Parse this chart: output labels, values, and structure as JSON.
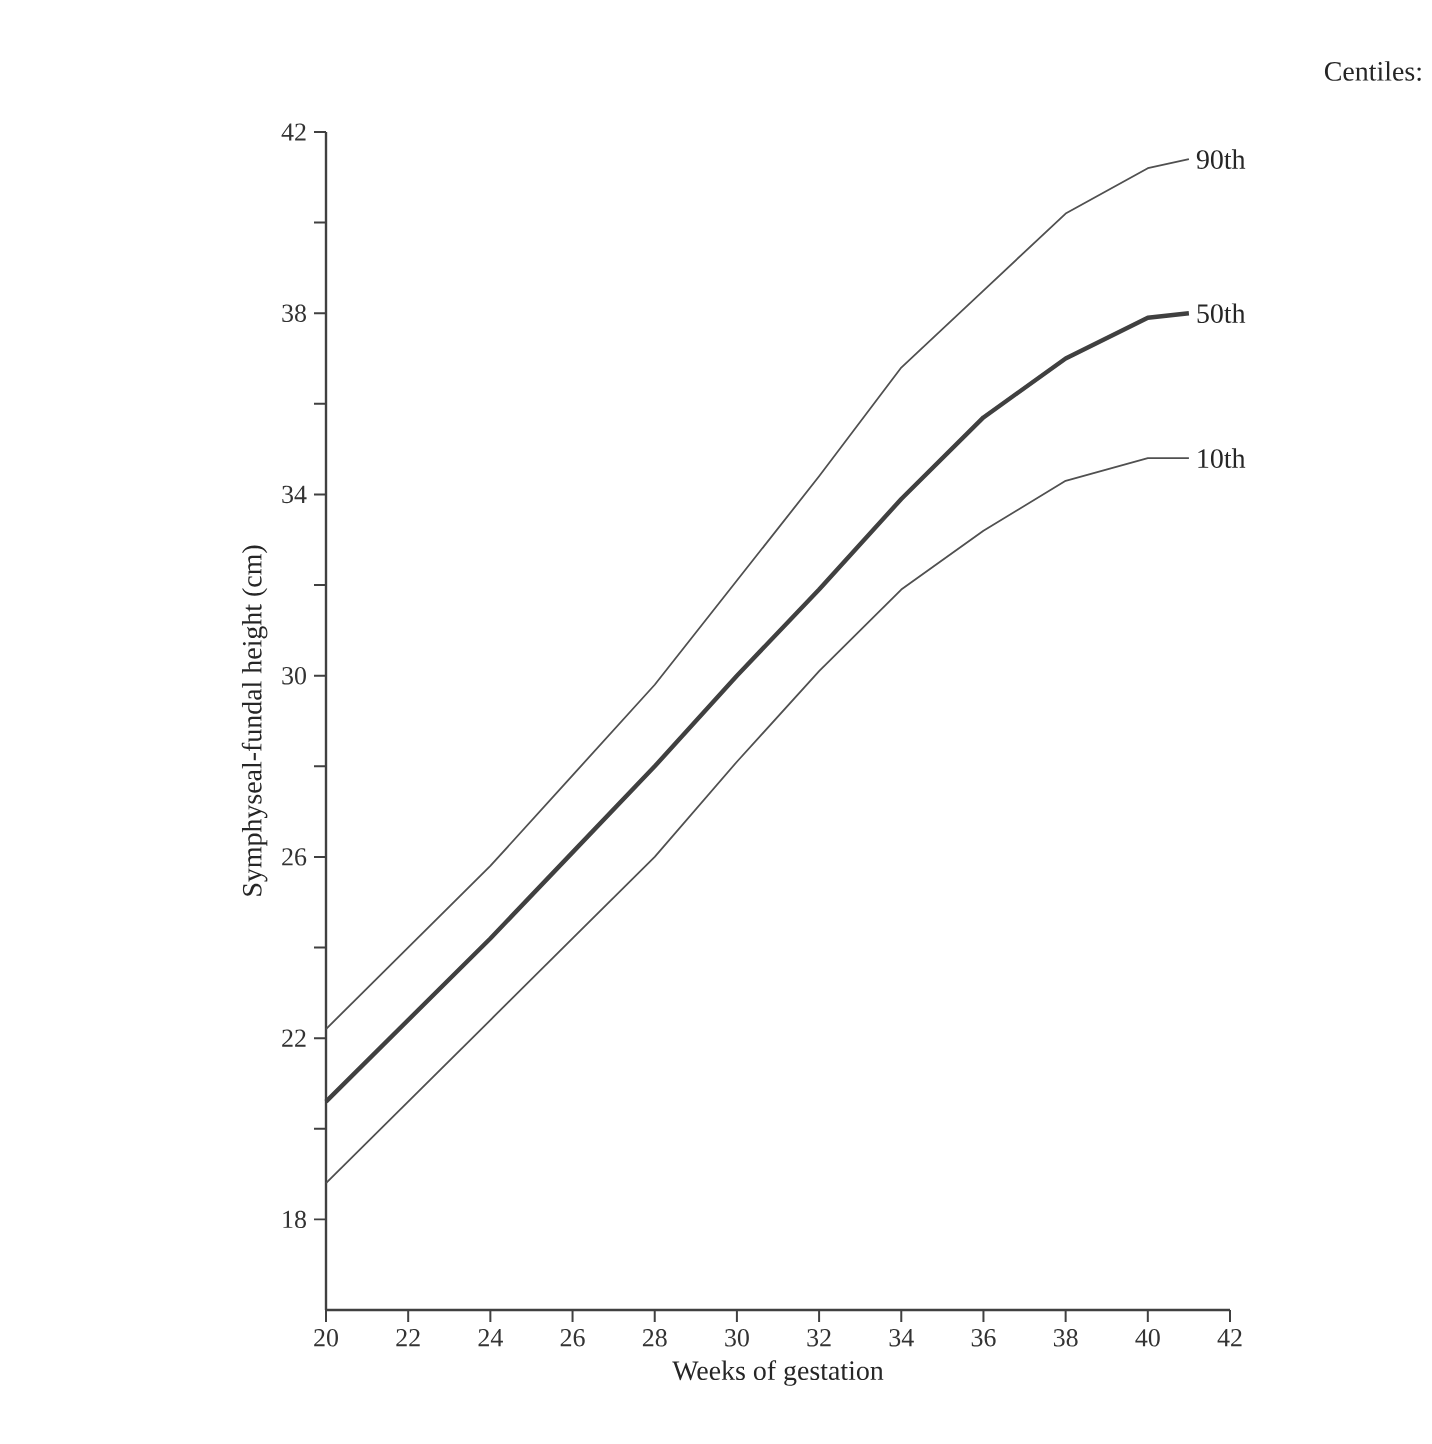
{
  "chart_data": {
    "type": "line",
    "xlabel": "Weeks of gestation",
    "ylabel": "Symphyseal-fundal height (cm)",
    "legend_title": "Centiles:",
    "x": [
      20,
      22,
      24,
      26,
      28,
      30,
      32,
      34,
      36,
      38,
      40,
      41
    ],
    "series": [
      {
        "name": "90th",
        "color": "#505050",
        "values": [
          22.2,
          24.0,
          25.8,
          27.8,
          29.8,
          32.1,
          34.4,
          36.8,
          38.5,
          40.2,
          41.2,
          41.4
        ]
      },
      {
        "name": "50th",
        "color": "#404040",
        "values": [
          20.6,
          22.4,
          24.2,
          26.1,
          28.0,
          30.0,
          31.9,
          33.9,
          35.7,
          37.0,
          37.9,
          38.0
        ]
      },
      {
        "name": "10th",
        "color": "#505050",
        "values": [
          18.8,
          20.6,
          22.4,
          24.2,
          26.0,
          28.1,
          30.1,
          31.9,
          33.2,
          34.3,
          34.8,
          34.8
        ]
      }
    ],
    "xlim": [
      20,
      42
    ],
    "xticks": [
      20,
      22,
      24,
      26,
      28,
      30,
      32,
      34,
      36,
      38,
      40,
      42
    ],
    "ylim": [
      16,
      42
    ],
    "yticks": [
      18,
      {
        "value": 20,
        "label": null
      },
      22,
      {
        "value": 24,
        "label": null
      },
      26,
      {
        "value": 28,
        "label": null
      },
      30,
      {
        "value": 32,
        "label": null
      },
      34,
      {
        "value": 36,
        "label": null
      },
      38,
      {
        "value": 40,
        "label": null
      },
      42
    ],
    "grid": false,
    "legend": false,
    "marker": "none",
    "line_style": "solid"
  }
}
